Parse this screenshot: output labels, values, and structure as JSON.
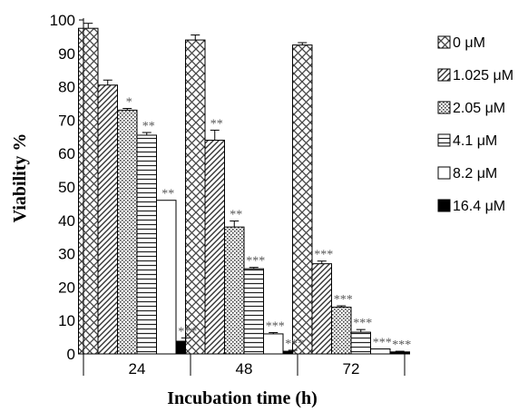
{
  "chart_data": {
    "type": "bar",
    "xlabel": "Incubation time (h)",
    "ylabel": "Viability %",
    "ylim": [
      0,
      100
    ],
    "yticks": [
      0,
      10,
      20,
      30,
      40,
      50,
      60,
      70,
      80,
      90,
      100
    ],
    "grid": false,
    "legend_position": "right",
    "categories": [
      "24",
      "48",
      "72"
    ],
    "series": [
      {
        "name": "0 μM",
        "pattern": "crosshatch",
        "values": [
          97.5,
          94,
          92.5
        ],
        "errors": [
          1.5,
          1.5,
          0.7
        ],
        "labels": [
          "",
          "",
          ""
        ]
      },
      {
        "name": "1.025 μM",
        "pattern": "diagonal",
        "values": [
          80.5,
          64,
          27
        ],
        "errors": [
          1.5,
          3,
          0.8
        ],
        "labels": [
          "",
          "**",
          "***"
        ]
      },
      {
        "name": "2.05 μM",
        "pattern": "dots",
        "values": [
          73,
          38,
          14
        ],
        "errors": [
          0.5,
          1.8,
          0.4
        ],
        "labels": [
          "*",
          "**",
          "***"
        ]
      },
      {
        "name": "4.1 μM",
        "pattern": "horizontal",
        "values": [
          65.5,
          25.5,
          6.5
        ],
        "errors": [
          0.8,
          0.4,
          0.8
        ],
        "labels": [
          "**",
          "***",
          "***"
        ]
      },
      {
        "name": "8.2 μM",
        "pattern": "white",
        "values": [
          46,
          6,
          1.5
        ],
        "errors": [
          0,
          0.4,
          0
        ],
        "labels": [
          "**",
          "***",
          "***"
        ]
      },
      {
        "name": "16.4 μM",
        "pattern": "black",
        "values": [
          3.8,
          0.8,
          0.6
        ],
        "errors": [
          1,
          0.3,
          0.2
        ],
        "labels": [
          "***",
          "***",
          "***"
        ]
      }
    ]
  }
}
